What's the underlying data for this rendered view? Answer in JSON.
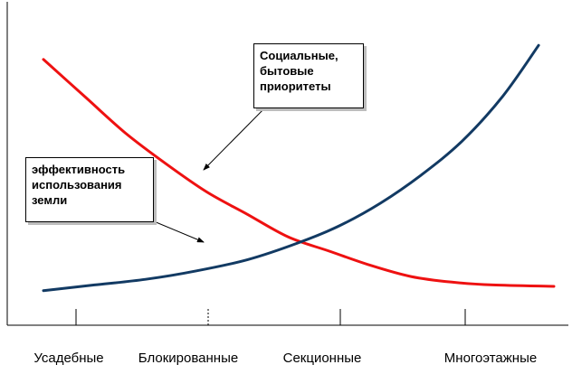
{
  "chart_data": {
    "type": "line",
    "title": "",
    "xlabel": "",
    "ylabel": "",
    "categories": [
      "Усадебные",
      "Блокированные",
      "Секционные",
      "Многоэтажные"
    ],
    "x_domain": [
      0,
      1
    ],
    "y_domain": [
      0,
      1
    ],
    "series": [
      {
        "color": "#ee1111",
        "x": [
          0.0,
          0.08,
          0.16,
          0.24,
          0.32,
          0.4,
          0.48,
          0.56,
          0.64,
          0.72,
          0.8,
          0.88,
          1.0
        ],
        "y": [
          0.93,
          0.8,
          0.67,
          0.56,
          0.46,
          0.38,
          0.3,
          0.25,
          0.2,
          0.16,
          0.14,
          0.13,
          0.125
        ]
      },
      {
        "color": "#123a63",
        "x": [
          0.0,
          0.1,
          0.2,
          0.3,
          0.4,
          0.5,
          0.58,
          0.66,
          0.74,
          0.82,
          0.9,
          0.97
        ],
        "y": [
          0.11,
          0.13,
          0.15,
          0.18,
          0.22,
          0.28,
          0.34,
          0.42,
          0.52,
          0.64,
          0.8,
          0.98
        ]
      }
    ],
    "callouts": [
      {
        "text": "Социальные,\n бытовые\n приоритеты"
      },
      {
        "text": "эффективность\nиспользования\nземли"
      }
    ]
  }
}
